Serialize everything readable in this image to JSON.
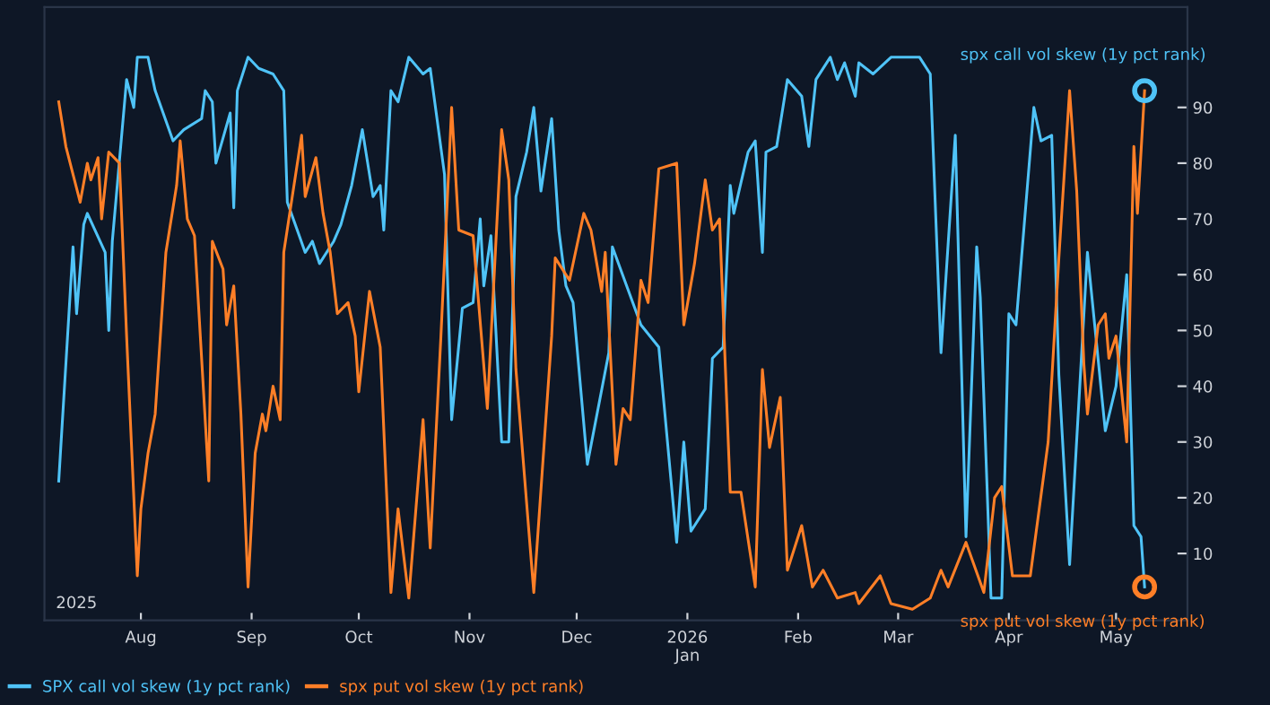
{
  "chart_data": {
    "type": "line",
    "xlim": [
      "2025-07-05",
      "2026-05-21"
    ],
    "ylim": [
      -2,
      108
    ],
    "xticks": [
      {
        "value": "2025-08-01",
        "label": "Aug"
      },
      {
        "value": "2025-09-01",
        "label": "Sep"
      },
      {
        "value": "2025-10-01",
        "label": "Oct"
      },
      {
        "value": "2025-11-01",
        "label": "Nov"
      },
      {
        "value": "2025-12-01",
        "label": "Dec"
      },
      {
        "value": "2026-01-01",
        "label": "2026\nJan"
      },
      {
        "value": "2026-02-01",
        "label": "Feb"
      },
      {
        "value": "2026-03-01",
        "label": "Mar"
      },
      {
        "value": "2026-04-01",
        "label": "Apr"
      },
      {
        "value": "2026-05-01",
        "label": "May"
      }
    ],
    "yticks": [
      10,
      20,
      30,
      40,
      50,
      60,
      70,
      80,
      90
    ],
    "grid": false,
    "legend": "bottom left",
    "marker": "none",
    "line_style": "solid",
    "annotations": [
      "2025",
      {
        "text": "spx call vol skew (1y pct rank)",
        "x": "2026-05-09",
        "y": 93
      },
      {
        "text": "spx put vol skew (1y pct rank)",
        "x": "2026-05-09",
        "y": 4
      }
    ],
    "series": [
      {
        "name": "SPX call vol skew (1y pct rank)",
        "color": "#4fc3f7",
        "x": [
          "2025-07-09",
          "2025-07-13",
          "2025-07-14",
          "2025-07-16",
          "2025-07-17",
          "2025-07-22",
          "2025-07-23",
          "2025-07-24",
          "2025-07-28",
          "2025-07-30",
          "2025-07-31",
          "2025-08-03",
          "2025-08-05",
          "2025-08-10",
          "2025-08-13",
          "2025-08-18",
          "2025-08-19",
          "2025-08-21",
          "2025-08-22",
          "2025-08-26",
          "2025-08-27",
          "2025-08-28",
          "2025-08-31",
          "2025-09-03",
          "2025-09-07",
          "2025-09-10",
          "2025-09-11",
          "2025-09-16",
          "2025-09-18",
          "2025-09-20",
          "2025-09-24",
          "2025-09-26",
          "2025-09-29",
          "2025-10-02",
          "2025-10-05",
          "2025-10-07",
          "2025-10-08",
          "2025-10-10",
          "2025-10-12",
          "2025-10-15",
          "2025-10-19",
          "2025-10-21",
          "2025-10-25",
          "2025-10-27",
          "2025-10-30",
          "2025-11-02",
          "2025-11-04",
          "2025-11-05",
          "2025-11-07",
          "2025-11-10",
          "2025-11-12",
          "2025-11-14",
          "2025-11-17",
          "2025-11-19",
          "2025-11-21",
          "2025-11-24",
          "2025-11-26",
          "2025-11-28",
          "2025-11-30",
          "2025-12-04",
          "2025-12-10",
          "2025-12-11",
          "2025-12-15",
          "2025-12-19",
          "2025-12-24",
          "2025-12-29",
          "2025-12-31",
          "2026-01-02",
          "2026-01-06",
          "2026-01-08",
          "2026-01-11",
          "2026-01-13",
          "2026-01-14",
          "2026-01-18",
          "2026-01-20",
          "2026-01-22",
          "2026-01-23",
          "2026-01-26",
          "2026-01-29",
          "2026-02-02",
          "2026-02-04",
          "2026-02-06",
          "2026-02-10",
          "2026-02-12",
          "2026-02-14",
          "2026-02-17",
          "2026-02-18",
          "2026-02-22",
          "2026-02-27",
          "2026-03-07",
          "2026-03-10",
          "2026-03-13",
          "2026-03-17",
          "2026-03-20",
          "2026-03-23",
          "2026-03-24",
          "2026-03-27",
          "2026-03-30",
          "2026-04-01",
          "2026-04-03",
          "2026-04-08",
          "2026-04-10",
          "2026-04-13",
          "2026-04-15",
          "2026-04-18",
          "2026-04-23",
          "2026-04-28",
          "2026-05-01",
          "2026-05-04",
          "2026-05-06",
          "2026-05-08",
          "2026-05-09"
        ],
        "values": [
          23,
          65,
          53,
          69,
          71,
          64,
          50,
          66,
          95,
          90,
          99,
          99,
          93,
          84,
          86,
          88,
          93,
          91,
          80,
          89,
          72,
          93,
          99,
          97,
          96,
          93,
          73,
          64,
          66,
          62,
          66,
          69,
          76,
          86,
          74,
          76,
          68,
          93,
          91,
          99,
          96,
          97,
          78,
          34,
          54,
          55,
          70,
          58,
          67,
          30,
          30,
          74,
          82,
          90,
          75,
          88,
          68,
          58,
          55,
          26,
          46,
          65,
          58,
          51,
          47,
          12,
          30,
          14,
          18,
          45,
          47,
          76,
          71,
          82,
          84,
          64,
          82,
          83,
          95,
          92,
          83,
          95,
          99,
          95,
          98,
          92,
          98,
          96,
          99,
          99,
          96,
          46,
          85,
          13,
          65,
          56,
          2,
          2,
          53,
          51,
          90,
          84,
          85,
          42,
          8,
          64,
          32,
          40,
          60,
          15,
          13,
          4
        ]
      },
      {
        "name": "spx put vol skew (1y pct rank)",
        "color": "#ff7f27",
        "x": [
          "2025-07-09",
          "2025-07-11",
          "2025-07-15",
          "2025-07-17",
          "2025-07-18",
          "2025-07-20",
          "2025-07-21",
          "2025-07-23",
          "2025-07-26",
          "2025-07-28",
          "2025-07-31",
          "2025-08-01",
          "2025-08-03",
          "2025-08-05",
          "2025-08-08",
          "2025-08-11",
          "2025-08-12",
          "2025-08-14",
          "2025-08-16",
          "2025-08-20",
          "2025-08-21",
          "2025-08-24",
          "2025-08-25",
          "2025-08-27",
          "2025-08-29",
          "2025-08-31",
          "2025-09-02",
          "2025-09-04",
          "2025-09-05",
          "2025-09-07",
          "2025-09-09",
          "2025-09-10",
          "2025-09-15",
          "2025-09-16",
          "2025-09-19",
          "2025-09-21",
          "2025-09-23",
          "2025-09-25",
          "2025-09-28",
          "2025-09-30",
          "2025-10-01",
          "2025-10-04",
          "2025-10-07",
          "2025-10-10",
          "2025-10-12",
          "2025-10-15",
          "2025-10-19",
          "2025-10-21",
          "2025-10-24",
          "2025-10-27",
          "2025-10-29",
          "2025-11-02",
          "2025-11-06",
          "2025-11-10",
          "2025-11-12",
          "2025-11-14",
          "2025-11-19",
          "2025-11-24",
          "2025-11-25",
          "2025-11-29",
          "2025-12-03",
          "2025-12-05",
          "2025-12-08",
          "2025-12-09",
          "2025-12-12",
          "2025-12-14",
          "2025-12-16",
          "2025-12-19",
          "2025-12-21",
          "2025-12-24",
          "2025-12-29",
          "2025-12-31",
          "2026-01-03",
          "2026-01-06",
          "2026-01-08",
          "2026-01-10",
          "2026-01-13",
          "2026-01-16",
          "2026-01-20",
          "2026-01-22",
          "2026-01-24",
          "2026-01-27",
          "2026-01-29",
          "2026-02-02",
          "2026-02-05",
          "2026-02-08",
          "2026-02-12",
          "2026-02-17",
          "2026-02-18",
          "2026-02-24",
          "2026-02-27",
          "2026-03-05",
          "2026-03-10",
          "2026-03-13",
          "2026-03-15",
          "2026-03-20",
          "2026-03-25",
          "2026-03-28",
          "2026-03-30",
          "2026-04-02",
          "2026-04-07",
          "2026-04-12",
          "2026-04-15",
          "2026-04-18",
          "2026-04-20",
          "2026-04-22",
          "2026-04-23",
          "2026-04-26",
          "2026-04-28",
          "2026-04-29",
          "2026-05-01",
          "2026-05-04",
          "2026-05-06",
          "2026-05-07",
          "2026-05-09"
        ],
        "values": [
          91,
          83,
          73,
          80,
          77,
          81,
          70,
          82,
          80,
          49,
          6,
          18,
          28,
          35,
          64,
          76,
          84,
          70,
          67,
          23,
          66,
          61,
          51,
          58,
          35,
          4,
          28,
          35,
          32,
          40,
          34,
          64,
          85,
          74,
          81,
          71,
          64,
          53,
          55,
          49,
          39,
          57,
          47,
          3,
          18,
          2,
          34,
          11,
          49,
          90,
          68,
          67,
          36,
          86,
          77,
          43,
          3,
          49,
          63,
          59,
          71,
          68,
          57,
          64,
          26,
          36,
          34,
          59,
          55,
          79,
          80,
          51,
          62,
          77,
          68,
          70,
          21,
          21,
          4,
          43,
          29,
          38,
          7,
          15,
          4,
          7,
          2,
          3,
          1,
          6,
          1,
          0,
          2,
          7,
          4,
          12,
          3,
          20,
          22,
          6,
          6,
          30,
          63,
          93,
          75,
          44,
          35,
          51,
          53,
          45,
          49,
          30,
          83,
          71,
          93
        ]
      }
    ]
  }
}
